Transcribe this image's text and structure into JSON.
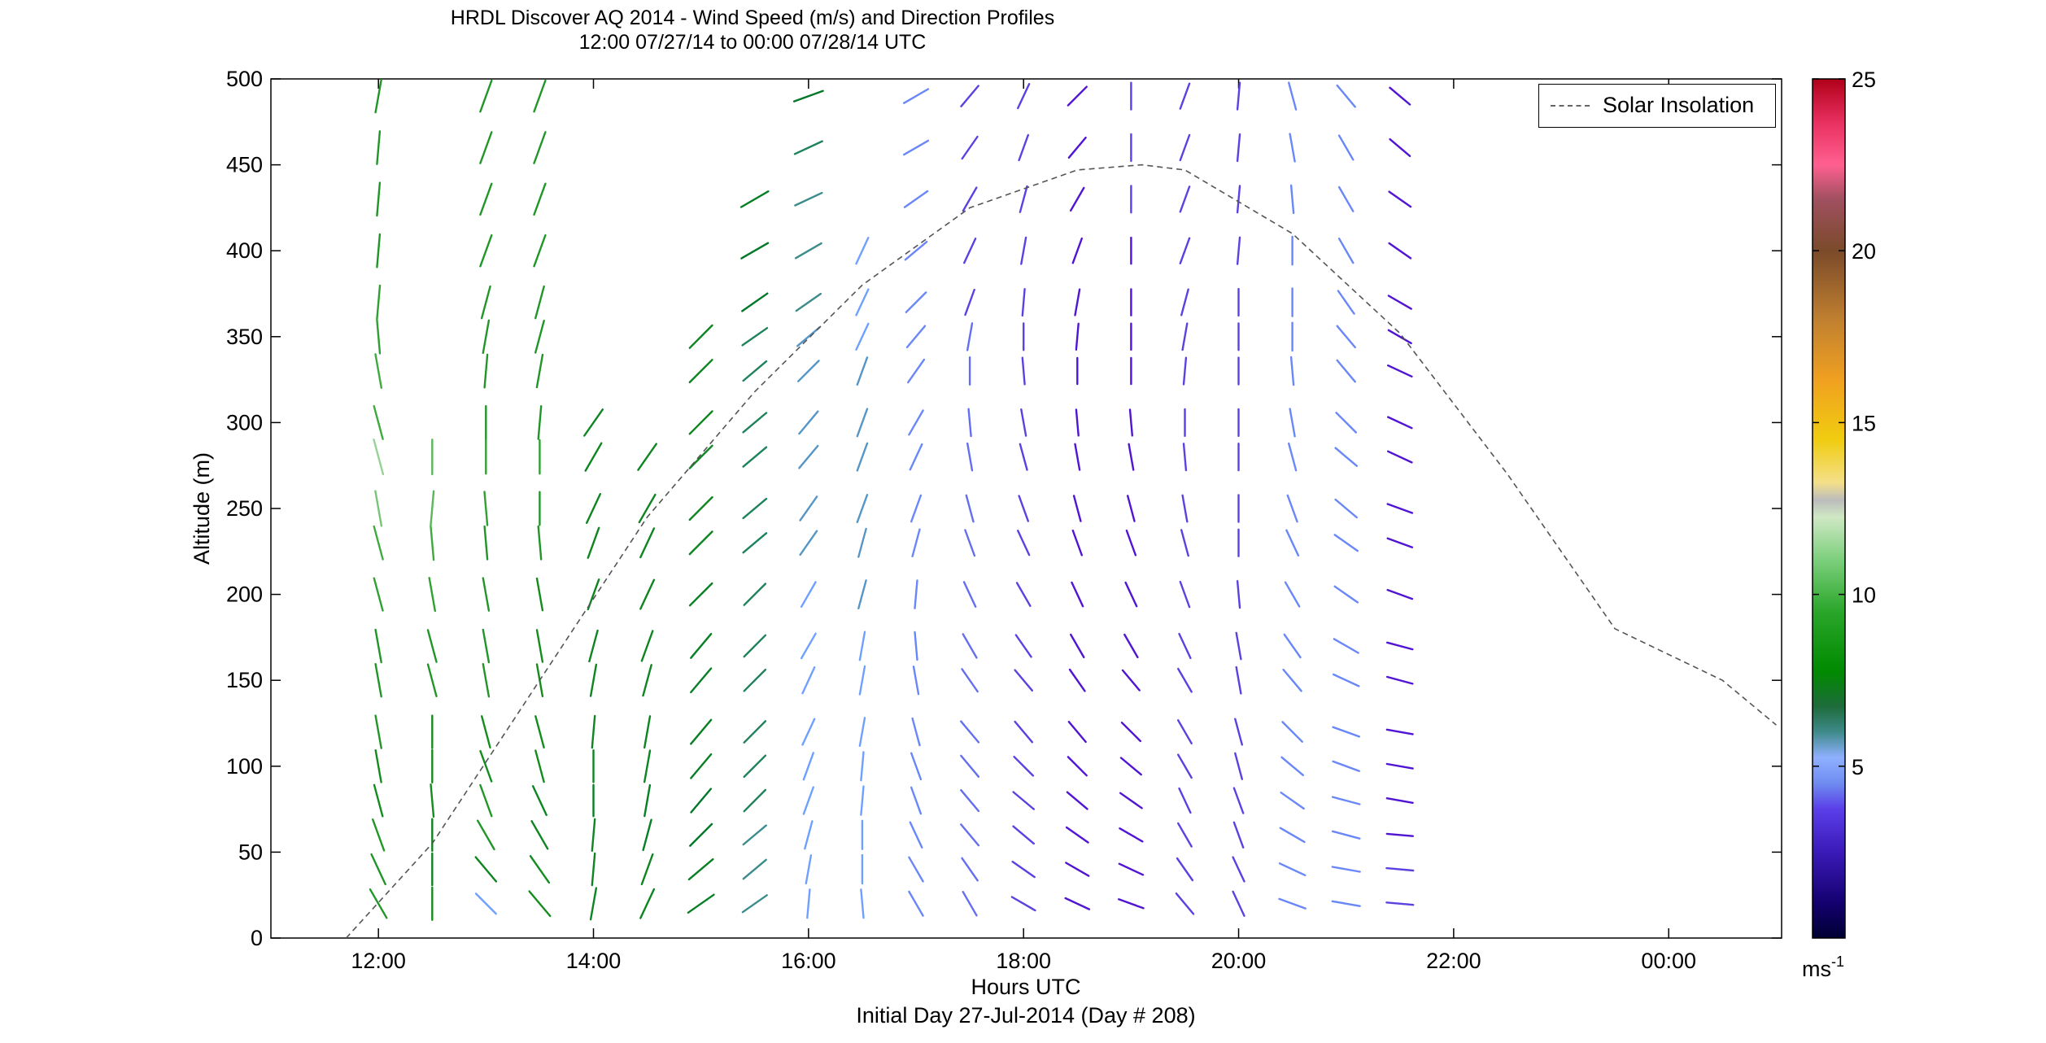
{
  "chart_data": {
    "type": "wind_barb_profile",
    "title": "HRDL Discover AQ 2014 - Wind Speed (m/s) and Direction Profiles",
    "subtitle": "12:00 07/27/14 to 00:00 07/28/14  UTC",
    "xlabel": "Hours UTC",
    "xlabel2": "Initial Day 27-Jul-2014 (Day # 208)",
    "ylabel": "Altitude (m)",
    "xlim": [
      11.0,
      25.05
    ],
    "ylim": [
      0,
      500
    ],
    "xticks": [
      12,
      14,
      16,
      18,
      20,
      22,
      24
    ],
    "xtick_labels": [
      "12:00",
      "14:00",
      "16:00",
      "18:00",
      "20:00",
      "22:00",
      "00:00"
    ],
    "yticks": [
      0,
      50,
      100,
      150,
      200,
      250,
      300,
      350,
      400,
      450,
      500
    ],
    "ytick_labels": [
      "0",
      "50",
      "100",
      "150",
      "200",
      "250",
      "300",
      "350",
      "400",
      "450",
      "500"
    ],
    "colorbar": {
      "label": "ms",
      "label_exp": "-1",
      "range": [
        0,
        25
      ],
      "ticks": [
        5,
        10,
        15,
        20,
        25
      ],
      "tick_labels": [
        "5",
        "10",
        "15",
        "20",
        "25"
      ]
    },
    "legend": {
      "label": "Solar Insolation",
      "placement": "top-right"
    },
    "solar_insolation_curve": {
      "x": [
        11.7,
        12.5,
        13.5,
        14.5,
        15.5,
        16.5,
        17.5,
        18.5,
        19.1,
        19.5,
        20.5,
        21.5,
        22.5,
        23.5,
        24.5,
        25.0
      ],
      "y": [
        0,
        55,
        150,
        245,
        318,
        380,
        425,
        447,
        450,
        447,
        410,
        352,
        270,
        180,
        150,
        124
      ]
    },
    "barb_heights": [
      20,
      40,
      60,
      80,
      100,
      120,
      150,
      170,
      200,
      230,
      250,
      280,
      300,
      330,
      350,
      370,
      400,
      430,
      460,
      490
    ],
    "barb_x_note": "scan times in hours UTC",
    "columns": [
      {
        "time": 12.0,
        "speeds": [
          9.0,
          9.0,
          9.0,
          8.5,
          8.5,
          9.0,
          9.0,
          9.0,
          9.5,
          10.0,
          11.0,
          11.5,
          10.0,
          10.0,
          9.5,
          9.5,
          9.0,
          9.0,
          9.0,
          9.0
        ],
        "dirs": [
          330,
          335,
          340,
          345,
          350,
          350,
          350,
          350,
          345,
          345,
          350,
          345,
          345,
          350,
          355,
          5,
          5,
          5,
          5,
          10
        ],
        "top": 500
      },
      {
        "time": 12.5,
        "speeds": [
          8.5,
          8.0,
          8.0,
          8.5,
          8.5,
          8.5,
          9.0,
          9.0,
          9.5,
          10.0,
          10.5,
          10.5
        ],
        "dirs": [
          0,
          0,
          0,
          355,
          0,
          0,
          345,
          345,
          350,
          355,
          5,
          0
        ],
        "top": 290
      },
      {
        "time": 13.0,
        "speeds": [
          5.0,
          8.0,
          9.0,
          9.0,
          8.5,
          8.5,
          9.0,
          9.0,
          9.0,
          9.0,
          9.5,
          9.5,
          9.0,
          9.0,
          9.0,
          9.0,
          9.0,
          9.0,
          9.0,
          9.0
        ],
        "dirs": [
          315,
          320,
          330,
          340,
          340,
          345,
          350,
          350,
          350,
          355,
          355,
          0,
          0,
          5,
          10,
          15,
          20,
          20,
          20,
          20
        ],
        "top": 500
      },
      {
        "time": 13.5,
        "speeds": [
          8.5,
          8.5,
          8.0,
          8.0,
          8.5,
          8.5,
          8.5,
          8.5,
          8.5,
          9.0,
          9.0,
          9.5,
          9.0,
          9.0,
          9.0,
          9.0,
          9.0,
          9.0,
          9.0,
          9.0
        ],
        "dirs": [
          320,
          325,
          330,
          335,
          345,
          345,
          350,
          350,
          350,
          355,
          0,
          0,
          5,
          10,
          15,
          15,
          20,
          20,
          20,
          20
        ],
        "top": 500
      },
      {
        "time": 14.0,
        "speeds": [
          8.0,
          8.0,
          8.0,
          7.5,
          8.0,
          8.0,
          8.0,
          8.0,
          8.0,
          8.0,
          8.0,
          8.0,
          8.0
        ],
        "dirs": [
          10,
          5,
          5,
          0,
          0,
          5,
          10,
          15,
          20,
          20,
          25,
          30,
          35
        ],
        "top": 350
      },
      {
        "time": 14.5,
        "speeds": [
          8.0,
          8.0,
          7.5,
          7.5,
          8.0,
          8.0,
          8.0,
          8.0,
          8.0,
          8.0,
          8.0,
          8.0
        ],
        "dirs": [
          25,
          20,
          15,
          10,
          10,
          10,
          15,
          20,
          25,
          25,
          30,
          35
        ],
        "top": 290
      },
      {
        "time": 15.0,
        "speeds": [
          7.5,
          7.5,
          7.0,
          7.0,
          7.5,
          7.5,
          7.5,
          7.5,
          7.5,
          8.0,
          8.0,
          8.0,
          8.0,
          8.0,
          8.0
        ],
        "dirs": [
          55,
          50,
          45,
          40,
          40,
          40,
          40,
          40,
          45,
          45,
          45,
          45,
          45,
          45,
          45
        ],
        "top": 350
      },
      {
        "time": 15.5,
        "speeds": [
          6.0,
          6.0,
          6.0,
          6.5,
          6.5,
          6.5,
          6.5,
          6.5,
          6.5,
          6.5,
          6.5,
          6.5,
          6.5,
          6.5,
          6.5,
          7.0,
          7.0,
          7.5
        ],
        "dirs": [
          55,
          50,
          50,
          45,
          45,
          45,
          45,
          45,
          45,
          50,
          50,
          50,
          50,
          50,
          55,
          55,
          60,
          60
        ],
        "top": 430
      },
      {
        "time": 16.0,
        "speeds": [
          5.0,
          5.0,
          5.0,
          5.0,
          5.0,
          5.0,
          5.0,
          5.0,
          5.0,
          5.5,
          5.5,
          5.5,
          5.5,
          5.5,
          5.5,
          6.0,
          6.0,
          6.0,
          6.5,
          7.0
        ],
        "dirs": [
          5,
          10,
          15,
          20,
          20,
          25,
          25,
          30,
          30,
          35,
          35,
          40,
          40,
          45,
          50,
          55,
          60,
          65,
          65,
          70
        ],
        "top": 500
      },
      {
        "time": 16.5,
        "speeds": [
          5.0,
          5.0,
          5.0,
          5.0,
          5.0,
          5.0,
          5.0,
          5.0,
          5.5,
          5.5,
          5.5,
          5.5,
          5.5,
          5.5,
          5.0,
          5.0,
          5.0
        ],
        "dirs": [
          355,
          0,
          0,
          5,
          5,
          10,
          10,
          10,
          15,
          15,
          20,
          20,
          20,
          20,
          25,
          25,
          25
        ],
        "top": 400
      },
      {
        "time": 17.0,
        "speeds": [
          4.5,
          4.5,
          4.5,
          4.5,
          4.5,
          4.5,
          4.5,
          4.5,
          4.5,
          4.5,
          4.5,
          4.5,
          4.5,
          4.5,
          4.5,
          4.5,
          4.5,
          4.5,
          4.5,
          4.5
        ],
        "dirs": [
          330,
          330,
          335,
          340,
          340,
          345,
          350,
          355,
          5,
          15,
          20,
          25,
          30,
          35,
          40,
          45,
          50,
          55,
          60,
          60
        ],
        "top": 500
      },
      {
        "time": 17.5,
        "speeds": [
          4.0,
          4.0,
          4.0,
          4.0,
          4.0,
          4.0,
          4.0,
          4.0,
          4.0,
          4.0,
          4.0,
          4.0,
          4.0,
          4.0,
          4.0,
          3.5,
          3.5,
          3.5,
          3.5,
          3.5
        ],
        "dirs": [
          330,
          325,
          320,
          320,
          320,
          320,
          325,
          330,
          335,
          340,
          345,
          350,
          355,
          0,
          10,
          20,
          25,
          30,
          35,
          40
        ],
        "top": 500
      },
      {
        "time": 18.0,
        "speeds": [
          3.5,
          3.5,
          3.5,
          3.5,
          3.5,
          3.5,
          3.5,
          3.5,
          3.5,
          3.5,
          3.5,
          3.5,
          3.5,
          3.5,
          3.5,
          3.5,
          3.5,
          3.5,
          3.5,
          3.5
        ],
        "dirs": [
          300,
          305,
          310,
          310,
          315,
          320,
          320,
          325,
          330,
          335,
          340,
          345,
          350,
          355,
          0,
          5,
          10,
          15,
          20,
          25
        ],
        "top": 500
      },
      {
        "time": 18.5,
        "speeds": [
          3.0,
          3.0,
          3.0,
          3.0,
          3.0,
          3.0,
          3.0,
          3.0,
          3.0,
          3.0,
          3.0,
          3.0,
          3.0,
          3.0,
          3.0,
          3.0,
          3.0,
          3.0,
          3.0,
          3.0
        ],
        "dirs": [
          295,
          300,
          305,
          310,
          315,
          320,
          325,
          330,
          335,
          340,
          345,
          350,
          355,
          0,
          5,
          10,
          20,
          30,
          40,
          45
        ],
        "top": 500
      },
      {
        "time": 19.0,
        "speeds": [
          3.0,
          3.0,
          3.0,
          3.0,
          3.0,
          3.0,
          3.0,
          3.0,
          3.0,
          3.0,
          3.0,
          3.0,
          3.0,
          3.0,
          3.0,
          3.0,
          3.0,
          3.5,
          3.5,
          3.5
        ],
        "dirs": [
          290,
          295,
          300,
          305,
          310,
          315,
          320,
          330,
          335,
          340,
          345,
          350,
          355,
          0,
          0,
          0,
          0,
          0,
          0,
          0
        ],
        "top": 500
      },
      {
        "time": 19.5,
        "speeds": [
          3.5,
          3.5,
          3.5,
          3.5,
          3.5,
          3.5,
          3.5,
          3.5,
          3.5,
          3.5,
          3.5,
          3.5,
          3.5,
          3.5,
          3.5,
          3.5,
          3.5,
          3.5,
          3.5,
          3.5
        ],
        "dirs": [
          320,
          325,
          330,
          335,
          330,
          330,
          330,
          335,
          340,
          345,
          350,
          355,
          0,
          5,
          10,
          15,
          20,
          20,
          20,
          20
        ],
        "top": 500
      },
      {
        "time": 20.0,
        "speeds": [
          3.5,
          3.5,
          3.5,
          3.5,
          3.5,
          3.5,
          3.5,
          3.5,
          3.5,
          3.5,
          3.5,
          3.5,
          3.5,
          3.5,
          3.5,
          3.5,
          3.5,
          3.5,
          3.5,
          3.5
        ],
        "dirs": [
          335,
          335,
          340,
          340,
          345,
          345,
          350,
          350,
          355,
          0,
          0,
          0,
          0,
          0,
          0,
          0,
          5,
          5,
          5,
          5
        ],
        "top": 500
      },
      {
        "time": 20.5,
        "speeds": [
          4.5,
          4.5,
          4.5,
          4.5,
          4.5,
          4.5,
          4.5,
          4.5,
          4.5,
          4.5,
          4.5,
          4.5,
          4.5,
          4.5,
          4.5,
          4.5,
          4.5,
          4.5,
          4.5,
          4.5
        ],
        "dirs": [
          290,
          295,
          300,
          305,
          310,
          315,
          320,
          325,
          330,
          335,
          340,
          345,
          350,
          355,
          0,
          0,
          0,
          355,
          350,
          345
        ],
        "top": 500
      },
      {
        "time": 21.0,
        "speeds": [
          4.5,
          4.5,
          4.5,
          4.5,
          4.5,
          4.5,
          4.5,
          4.5,
          4.5,
          4.5,
          4.5,
          4.5,
          4.5,
          4.5,
          4.5,
          4.5,
          4.5,
          4.5,
          4.5,
          4.5
        ],
        "dirs": [
          280,
          280,
          285,
          285,
          290,
          290,
          295,
          300,
          305,
          305,
          310,
          310,
          315,
          320,
          320,
          325,
          330,
          330,
          330,
          320
        ],
        "top": 500
      },
      {
        "time": 21.5,
        "speeds": [
          3.5,
          3.5,
          3.0,
          3.0,
          3.0,
          3.0,
          3.0,
          3.0,
          3.0,
          3.0,
          3.0,
          3.0,
          3.0,
          3.0,
          3.0,
          3.0,
          3.0,
          3.0,
          3.0,
          3.0
        ],
        "dirs": [
          275,
          275,
          275,
          280,
          280,
          280,
          285,
          285,
          290,
          290,
          290,
          295,
          295,
          295,
          300,
          300,
          305,
          305,
          310,
          310
        ],
        "top": 500
      }
    ]
  }
}
